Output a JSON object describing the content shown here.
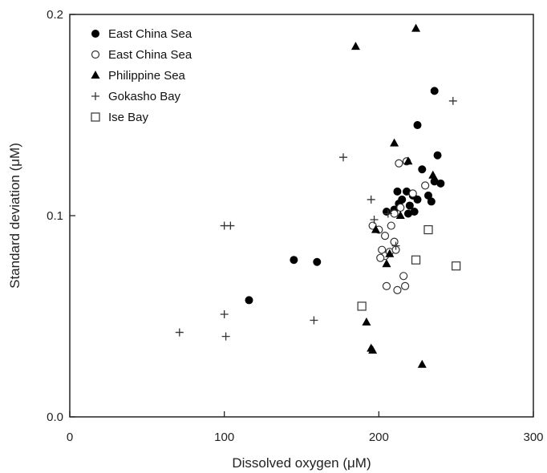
{
  "chart_data": {
    "type": "scatter",
    "title": "",
    "xlabel": "Dissolved oxygen (μM)",
    "ylabel": "Standard deviation (μM)",
    "xlim": [
      0,
      300
    ],
    "ylim": [
      0,
      0.2
    ],
    "xticks": [
      "0",
      "100",
      "200",
      "300"
    ],
    "yticks": [
      "0.0",
      "0.1",
      "0.2"
    ],
    "grid": false,
    "legend_position": "top-left",
    "series": [
      {
        "name": "East China Sea",
        "marker": "filled-circle",
        "points": [
          [
            116,
            0.058
          ],
          [
            145,
            0.078
          ],
          [
            160,
            0.077
          ],
          [
            205,
            0.102
          ],
          [
            210,
            0.103
          ],
          [
            212,
            0.112
          ],
          [
            215,
            0.108
          ],
          [
            218,
            0.112
          ],
          [
            220,
            0.105
          ],
          [
            222,
            0.11
          ],
          [
            223,
            0.102
          ],
          [
            225,
            0.108
          ],
          [
            225,
            0.145
          ],
          [
            228,
            0.123
          ],
          [
            232,
            0.11
          ],
          [
            234,
            0.107
          ],
          [
            236,
            0.117
          ],
          [
            236,
            0.162
          ],
          [
            238,
            0.13
          ],
          [
            240,
            0.116
          ],
          [
            213,
            0.106
          ],
          [
            219,
            0.101
          ]
        ]
      },
      {
        "name": "East China Sea",
        "marker": "open-circle",
        "points": [
          [
            196,
            0.095
          ],
          [
            200,
            0.093
          ],
          [
            202,
            0.083
          ],
          [
            204,
            0.08
          ],
          [
            204,
            0.09
          ],
          [
            205,
            0.065
          ],
          [
            207,
            0.082
          ],
          [
            208,
            0.095
          ],
          [
            210,
            0.101
          ],
          [
            210,
            0.087
          ],
          [
            211,
            0.083
          ],
          [
            212,
            0.063
          ],
          [
            213,
            0.126
          ],
          [
            214,
            0.104
          ],
          [
            216,
            0.07
          ],
          [
            217,
            0.065
          ],
          [
            218,
            0.127
          ],
          [
            230,
            0.115
          ],
          [
            222,
            0.111
          ],
          [
            201,
            0.079
          ]
        ]
      },
      {
        "name": "Philippine Sea",
        "marker": "filled-triangle",
        "points": [
          [
            185,
            0.184
          ],
          [
            192,
            0.047
          ],
          [
            195,
            0.034
          ],
          [
            196,
            0.033
          ],
          [
            198,
            0.093
          ],
          [
            205,
            0.076
          ],
          [
            207,
            0.081
          ],
          [
            210,
            0.136
          ],
          [
            219,
            0.127
          ],
          [
            224,
            0.193
          ],
          [
            228,
            0.026
          ],
          [
            214,
            0.1
          ],
          [
            235,
            0.12
          ]
        ]
      },
      {
        "name": "Gokasho Bay",
        "marker": "plus",
        "points": [
          [
            71,
            0.042
          ],
          [
            100,
            0.095
          ],
          [
            104,
            0.095
          ],
          [
            100,
            0.051
          ],
          [
            101,
            0.04
          ],
          [
            158,
            0.048
          ],
          [
            177,
            0.129
          ],
          [
            195,
            0.108
          ],
          [
            197,
            0.098
          ],
          [
            248,
            0.157
          ],
          [
            211,
            0.085
          ],
          [
            206,
            0.101
          ]
        ]
      },
      {
        "name": "Ise Bay",
        "marker": "open-square",
        "points": [
          [
            189,
            0.055
          ],
          [
            224,
            0.078
          ],
          [
            232,
            0.093
          ],
          [
            250,
            0.075
          ]
        ]
      }
    ]
  }
}
